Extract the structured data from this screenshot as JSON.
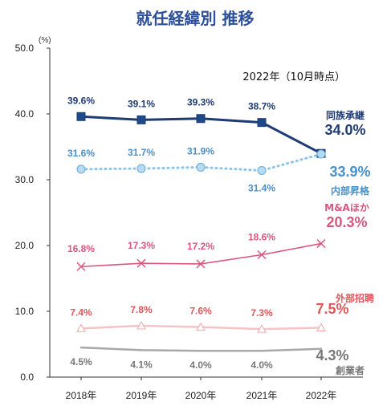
{
  "chart_data": {
    "type": "line",
    "title": "就任経緯別 推移",
    "note": "2022年（10月時点）",
    "unit": "(%)",
    "categories": [
      "2018年",
      "2019年",
      "2020年",
      "2021年",
      "2022年"
    ],
    "ylim": [
      0,
      50
    ],
    "yticks": [
      "0.0",
      "10.0",
      "20.0",
      "30.0",
      "40.0",
      "50.0"
    ],
    "grid": false,
    "series": [
      {
        "name": "同族承継",
        "values": [
          39.6,
          39.1,
          39.3,
          38.7,
          34.0
        ],
        "labels": [
          "39.6%",
          "39.1%",
          "39.3%",
          "38.7%",
          "34.0%"
        ],
        "color": "#1f3b73",
        "marker": "square",
        "dash": "solid"
      },
      {
        "name": "内部昇格",
        "values": [
          31.6,
          31.7,
          31.9,
          31.4,
          33.9
        ],
        "labels": [
          "31.6%",
          "31.7%",
          "31.9%",
          "31.4%",
          "33.9%"
        ],
        "color": "#4a90c8",
        "marker": "circle",
        "dash": "dotted"
      },
      {
        "name": "M&Aほか",
        "values": [
          16.8,
          17.3,
          17.2,
          18.6,
          20.3
        ],
        "labels": [
          "16.8%",
          "17.3%",
          "17.2%",
          "18.6%",
          "20.3%"
        ],
        "color": "#d9577f",
        "marker": "x",
        "dash": "solid"
      },
      {
        "name": "外部招聘",
        "values": [
          7.4,
          7.8,
          7.6,
          7.3,
          7.5
        ],
        "labels": [
          "7.4%",
          "7.8%",
          "7.6%",
          "7.3%",
          "7.5%"
        ],
        "color": "#e0575a",
        "marker": "triangle",
        "dash": "solid"
      },
      {
        "name": "創業者",
        "values": [
          4.5,
          4.1,
          4.0,
          4.0,
          4.3
        ],
        "labels": [
          "4.5%",
          "4.1%",
          "4.0%",
          "4.0%",
          "4.3%"
        ],
        "color": "#8a8a8a",
        "marker": "none",
        "dash": "solid"
      }
    ]
  }
}
